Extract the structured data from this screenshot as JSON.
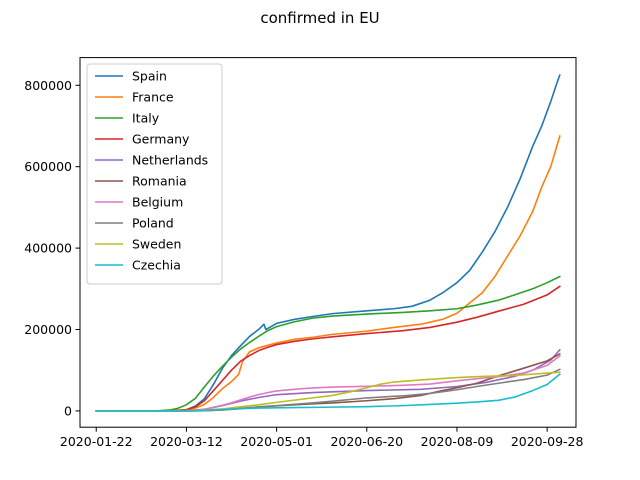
{
  "chart_data": {
    "type": "line",
    "title": "confirmed in EU",
    "xlabel": "",
    "ylabel": "",
    "x_start": "2020-01-22",
    "x_end": "2020-10-05",
    "xlim": [
      "2020-01-13",
      "2020-10-14"
    ],
    "ylim": [
      -40000,
      868000
    ],
    "x_ticks": [
      "2020-01-22",
      "2020-03-12",
      "2020-05-01",
      "2020-06-20",
      "2020-08-09",
      "2020-09-28"
    ],
    "y_ticks": [
      0,
      200000,
      400000,
      600000,
      800000
    ],
    "y_tick_labels": [
      "0",
      "200000",
      "400000",
      "600000",
      "800000"
    ],
    "legend_position": "upper-left",
    "grid": false,
    "series": [
      {
        "name": "Spain",
        "color": "#1f77b4",
        "points": [
          [
            "2020-01-22",
            0
          ],
          [
            "2020-02-25",
            0
          ],
          [
            "2020-03-05",
            300
          ],
          [
            "2020-03-12",
            3000
          ],
          [
            "2020-03-17",
            12000
          ],
          [
            "2020-03-22",
            30000
          ],
          [
            "2020-03-27",
            65000
          ],
          [
            "2020-04-01",
            105000
          ],
          [
            "2020-04-06",
            136000
          ],
          [
            "2020-04-11",
            160000
          ],
          [
            "2020-04-16",
            183000
          ],
          [
            "2020-04-21",
            200000
          ],
          [
            "2020-04-24",
            213000
          ],
          [
            "2020-04-25",
            200000
          ],
          [
            "2020-05-01",
            215000
          ],
          [
            "2020-05-11",
            225000
          ],
          [
            "2020-05-21",
            232000
          ],
          [
            "2020-06-01",
            239000
          ],
          [
            "2020-06-20",
            246000
          ],
          [
            "2020-07-05",
            251000
          ],
          [
            "2020-07-15",
            257000
          ],
          [
            "2020-07-25",
            272000
          ],
          [
            "2020-08-01",
            290000
          ],
          [
            "2020-08-09",
            315000
          ],
          [
            "2020-08-16",
            345000
          ],
          [
            "2020-08-23",
            390000
          ],
          [
            "2020-08-30",
            440000
          ],
          [
            "2020-09-06",
            500000
          ],
          [
            "2020-09-13",
            570000
          ],
          [
            "2020-09-20",
            650000
          ],
          [
            "2020-09-25",
            700000
          ],
          [
            "2020-09-30",
            760000
          ],
          [
            "2020-10-03",
            800000
          ],
          [
            "2020-10-05",
            825000
          ]
        ]
      },
      {
        "name": "France",
        "color": "#ff7f0e",
        "points": [
          [
            "2020-01-22",
            0
          ],
          [
            "2020-02-29",
            100
          ],
          [
            "2020-03-12",
            3000
          ],
          [
            "2020-03-17",
            7000
          ],
          [
            "2020-03-22",
            16000
          ],
          [
            "2020-03-27",
            33000
          ],
          [
            "2020-04-01",
            55000
          ],
          [
            "2020-04-06",
            72000
          ],
          [
            "2020-04-10",
            90000
          ],
          [
            "2020-04-12",
            120000
          ],
          [
            "2020-04-16",
            145000
          ],
          [
            "2020-04-21",
            155000
          ],
          [
            "2020-05-01",
            167000
          ],
          [
            "2020-05-11",
            176000
          ],
          [
            "2020-05-21",
            181000
          ],
          [
            "2020-06-01",
            188000
          ],
          [
            "2020-06-20",
            196000
          ],
          [
            "2020-07-05",
            205000
          ],
          [
            "2020-07-20",
            213000
          ],
          [
            "2020-08-01",
            225000
          ],
          [
            "2020-08-09",
            240000
          ],
          [
            "2020-08-16",
            265000
          ],
          [
            "2020-08-23",
            290000
          ],
          [
            "2020-08-30",
            330000
          ],
          [
            "2020-09-06",
            380000
          ],
          [
            "2020-09-13",
            430000
          ],
          [
            "2020-09-20",
            490000
          ],
          [
            "2020-09-25",
            550000
          ],
          [
            "2020-09-30",
            600000
          ],
          [
            "2020-10-05",
            675000
          ]
        ]
      },
      {
        "name": "Italy",
        "color": "#2ca02c",
        "points": [
          [
            "2020-01-22",
            0
          ],
          [
            "2020-02-20",
            0
          ],
          [
            "2020-02-25",
            300
          ],
          [
            "2020-03-02",
            2000
          ],
          [
            "2020-03-07",
            6000
          ],
          [
            "2020-03-12",
            15000
          ],
          [
            "2020-03-17",
            31000
          ],
          [
            "2020-03-22",
            59000
          ],
          [
            "2020-03-27",
            86000
          ],
          [
            "2020-04-01",
            110000
          ],
          [
            "2020-04-06",
            132000
          ],
          [
            "2020-04-11",
            152000
          ],
          [
            "2020-04-16",
            168000
          ],
          [
            "2020-04-21",
            183000
          ],
          [
            "2020-04-26",
            197000
          ],
          [
            "2020-05-01",
            207000
          ],
          [
            "2020-05-11",
            219000
          ],
          [
            "2020-05-21",
            228000
          ],
          [
            "2020-06-01",
            233000
          ],
          [
            "2020-06-20",
            238000
          ],
          [
            "2020-07-10",
            242000
          ],
          [
            "2020-07-25",
            246000
          ],
          [
            "2020-08-09",
            251000
          ],
          [
            "2020-08-20",
            260000
          ],
          [
            "2020-09-01",
            272000
          ],
          [
            "2020-09-10",
            285000
          ],
          [
            "2020-09-20",
            300000
          ],
          [
            "2020-09-28",
            315000
          ],
          [
            "2020-10-05",
            330000
          ]
        ]
      },
      {
        "name": "Germany",
        "color": "#d62728",
        "points": [
          [
            "2020-01-22",
            0
          ],
          [
            "2020-02-25",
            20
          ],
          [
            "2020-03-05",
            500
          ],
          [
            "2020-03-12",
            3000
          ],
          [
            "2020-03-17",
            10000
          ],
          [
            "2020-03-22",
            25000
          ],
          [
            "2020-03-27",
            50000
          ],
          [
            "2020-04-01",
            75000
          ],
          [
            "2020-04-06",
            100000
          ],
          [
            "2020-04-11",
            122000
          ],
          [
            "2020-04-16",
            136000
          ],
          [
            "2020-04-21",
            148000
          ],
          [
            "2020-04-26",
            156000
          ],
          [
            "2020-05-01",
            163000
          ],
          [
            "2020-05-11",
            171000
          ],
          [
            "2020-05-21",
            177000
          ],
          [
            "2020-06-01",
            182000
          ],
          [
            "2020-06-20",
            190000
          ],
          [
            "2020-07-10",
            197000
          ],
          [
            "2020-07-25",
            205000
          ],
          [
            "2020-08-09",
            218000
          ],
          [
            "2020-08-20",
            230000
          ],
          [
            "2020-09-01",
            245000
          ],
          [
            "2020-09-15",
            262000
          ],
          [
            "2020-09-28",
            285000
          ],
          [
            "2020-10-05",
            306000
          ]
        ]
      },
      {
        "name": "Netherlands",
        "color": "#9467bd",
        "points": [
          [
            "2020-01-22",
            0
          ],
          [
            "2020-03-01",
            0
          ],
          [
            "2020-03-12",
            500
          ],
          [
            "2020-03-22",
            4000
          ],
          [
            "2020-04-01",
            13000
          ],
          [
            "2020-04-11",
            24000
          ],
          [
            "2020-04-21",
            33000
          ],
          [
            "2020-05-01",
            40000
          ],
          [
            "2020-05-21",
            45000
          ],
          [
            "2020-06-20",
            50000
          ],
          [
            "2020-07-20",
            53000
          ],
          [
            "2020-08-09",
            60000
          ],
          [
            "2020-08-25",
            70000
          ],
          [
            "2020-09-10",
            85000
          ],
          [
            "2020-09-20",
            100000
          ],
          [
            "2020-09-30",
            125000
          ],
          [
            "2020-10-05",
            150000
          ]
        ]
      },
      {
        "name": "Romania",
        "color": "#8c564b",
        "points": [
          [
            "2020-01-22",
            0
          ],
          [
            "2020-03-01",
            0
          ],
          [
            "2020-03-12",
            50
          ],
          [
            "2020-03-22",
            500
          ],
          [
            "2020-04-01",
            2500
          ],
          [
            "2020-04-11",
            5500
          ],
          [
            "2020-04-21",
            9000
          ],
          [
            "2020-05-01",
            12500
          ],
          [
            "2020-05-21",
            17500
          ],
          [
            "2020-06-01",
            19500
          ],
          [
            "2020-06-20",
            25000
          ],
          [
            "2020-07-05",
            30000
          ],
          [
            "2020-07-20",
            38000
          ],
          [
            "2020-08-01",
            50000
          ],
          [
            "2020-08-09",
            57000
          ],
          [
            "2020-08-20",
            68000
          ],
          [
            "2020-09-01",
            86000
          ],
          [
            "2020-09-15",
            105000
          ],
          [
            "2020-09-28",
            123000
          ],
          [
            "2020-10-05",
            140000
          ]
        ]
      },
      {
        "name": "Belgium",
        "color": "#e377c2",
        "points": [
          [
            "2020-01-22",
            0
          ],
          [
            "2020-03-01",
            0
          ],
          [
            "2020-03-12",
            300
          ],
          [
            "2020-03-17",
            1500
          ],
          [
            "2020-03-22",
            4000
          ],
          [
            "2020-03-27",
            9000
          ],
          [
            "2020-04-01",
            14000
          ],
          [
            "2020-04-06",
            20000
          ],
          [
            "2020-04-11",
            27000
          ],
          [
            "2020-04-16",
            34000
          ],
          [
            "2020-04-21",
            40000
          ],
          [
            "2020-04-26",
            45000
          ],
          [
            "2020-05-01",
            49000
          ],
          [
            "2020-05-11",
            53000
          ],
          [
            "2020-05-21",
            56500
          ],
          [
            "2020-06-01",
            58500
          ],
          [
            "2020-06-20",
            60500
          ],
          [
            "2020-07-10",
            63000
          ],
          [
            "2020-07-25",
            66000
          ],
          [
            "2020-08-09",
            74000
          ],
          [
            "2020-08-20",
            79000
          ],
          [
            "2020-09-01",
            84000
          ],
          [
            "2020-09-15",
            93000
          ],
          [
            "2020-09-28",
            112000
          ],
          [
            "2020-10-05",
            135000
          ]
        ]
      },
      {
        "name": "Poland",
        "color": "#7f7f7f",
        "points": [
          [
            "2020-01-22",
            0
          ],
          [
            "2020-03-04",
            0
          ],
          [
            "2020-03-12",
            50
          ],
          [
            "2020-03-22",
            600
          ],
          [
            "2020-04-01",
            2500
          ],
          [
            "2020-04-11",
            6500
          ],
          [
            "2020-04-21",
            10000
          ],
          [
            "2020-05-01",
            13000
          ],
          [
            "2020-05-21",
            19500
          ],
          [
            "2020-06-01",
            24000
          ],
          [
            "2020-06-20",
            32000
          ],
          [
            "2020-07-10",
            37000
          ],
          [
            "2020-07-25",
            43000
          ],
          [
            "2020-08-09",
            52000
          ],
          [
            "2020-08-20",
            60000
          ],
          [
            "2020-09-01",
            68000
          ],
          [
            "2020-09-15",
            77000
          ],
          [
            "2020-09-28",
            88000
          ],
          [
            "2020-10-05",
            102000
          ]
        ]
      },
      {
        "name": "Sweden",
        "color": "#bcbd22",
        "points": [
          [
            "2020-01-22",
            0
          ],
          [
            "2020-02-25",
            0
          ],
          [
            "2020-03-12",
            800
          ],
          [
            "2020-03-22",
            2000
          ],
          [
            "2020-04-01",
            5000
          ],
          [
            "2020-04-11",
            10000
          ],
          [
            "2020-04-21",
            15000
          ],
          [
            "2020-05-01",
            21000
          ],
          [
            "2020-05-11",
            26500
          ],
          [
            "2020-05-21",
            32000
          ],
          [
            "2020-06-01",
            38000
          ],
          [
            "2020-06-10",
            46000
          ],
          [
            "2020-06-20",
            57000
          ],
          [
            "2020-06-28",
            66000
          ],
          [
            "2020-07-05",
            71000
          ],
          [
            "2020-07-20",
            76000
          ],
          [
            "2020-08-09",
            82000
          ],
          [
            "2020-08-25",
            85000
          ],
          [
            "2020-09-10",
            87000
          ],
          [
            "2020-09-28",
            93000
          ],
          [
            "2020-10-05",
            95000
          ]
        ]
      },
      {
        "name": "Czechia",
        "color": "#17becf",
        "points": [
          [
            "2020-01-22",
            0
          ],
          [
            "2020-03-01",
            0
          ],
          [
            "2020-03-12",
            100
          ],
          [
            "2020-03-22",
            1200
          ],
          [
            "2020-04-01",
            3500
          ],
          [
            "2020-04-11",
            5700
          ],
          [
            "2020-04-21",
            7000
          ],
          [
            "2020-05-01",
            7700
          ],
          [
            "2020-06-01",
            9300
          ],
          [
            "2020-06-20",
            10500
          ],
          [
            "2020-07-10",
            13000
          ],
          [
            "2020-07-25",
            16000
          ],
          [
            "2020-08-09",
            19000
          ],
          [
            "2020-08-20",
            22000
          ],
          [
            "2020-09-01",
            26000
          ],
          [
            "2020-09-10",
            34000
          ],
          [
            "2020-09-20",
            50000
          ],
          [
            "2020-09-28",
            65000
          ],
          [
            "2020-10-05",
            90000
          ]
        ]
      }
    ]
  }
}
